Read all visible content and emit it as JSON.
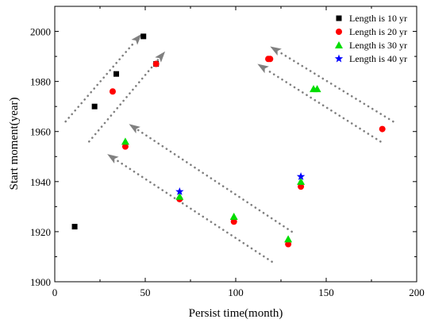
{
  "chart_data": {
    "type": "scatter",
    "xlabel": "Persist time(month)",
    "ylabel": "Start moment(year)",
    "xlim": [
      0,
      200
    ],
    "ylim": [
      1900,
      2010
    ],
    "xticks": [
      0,
      50,
      100,
      150,
      200
    ],
    "yticks": [
      1900,
      1920,
      1940,
      1960,
      1980,
      2000
    ],
    "grid": false,
    "legend_position": "top-right",
    "series": [
      {
        "name": "Length is 10 yr",
        "marker": "square",
        "color": "#000000",
        "points": [
          [
            11,
            1922
          ],
          [
            22,
            1970
          ],
          [
            34,
            1983
          ],
          [
            49,
            1998
          ],
          [
            56,
            1987
          ]
        ]
      },
      {
        "name": "Length is 20 yr",
        "marker": "circle",
        "color": "#ff0000",
        "points": [
          [
            32,
            1976
          ],
          [
            39,
            1954
          ],
          [
            56,
            1987
          ],
          [
            69,
            1933
          ],
          [
            99,
            1924
          ],
          [
            129,
            1915
          ],
          [
            136,
            1938
          ],
          [
            118,
            1989
          ],
          [
            119,
            1989
          ],
          [
            181,
            1961
          ]
        ]
      },
      {
        "name": "Length is 30 yr",
        "marker": "triangle",
        "color": "#00dd00",
        "points": [
          [
            39,
            1956
          ],
          [
            69,
            1934
          ],
          [
            99,
            1926
          ],
          [
            129,
            1917
          ],
          [
            136,
            1940
          ],
          [
            143,
            1977
          ],
          [
            145,
            1977
          ]
        ]
      },
      {
        "name": "Length is 40 yr",
        "marker": "star",
        "color": "#0000ff",
        "points": [
          [
            69,
            1936
          ],
          [
            136,
            1942
          ]
        ]
      }
    ],
    "annotations": [
      {
        "type": "dotted-arrow",
        "from": [
          6,
          1964
        ],
        "to": [
          48,
          1999
        ]
      },
      {
        "type": "dotted-arrow",
        "from": [
          19,
          1956
        ],
        "to": [
          61,
          1992
        ]
      },
      {
        "type": "dotted-arrow",
        "from": [
          131,
          1920
        ],
        "to": [
          41,
          1963
        ]
      },
      {
        "type": "dotted-arrow",
        "from": [
          120,
          1908
        ],
        "to": [
          29,
          1951
        ]
      },
      {
        "type": "dotted-arrow",
        "from": [
          187,
          1964
        ],
        "to": [
          119,
          1994
        ]
      },
      {
        "type": "dotted-arrow",
        "from": [
          180,
          1956
        ],
        "to": [
          112,
          1987
        ]
      }
    ],
    "colors": {
      "arrow": "#808080",
      "axis": "#000000"
    }
  }
}
